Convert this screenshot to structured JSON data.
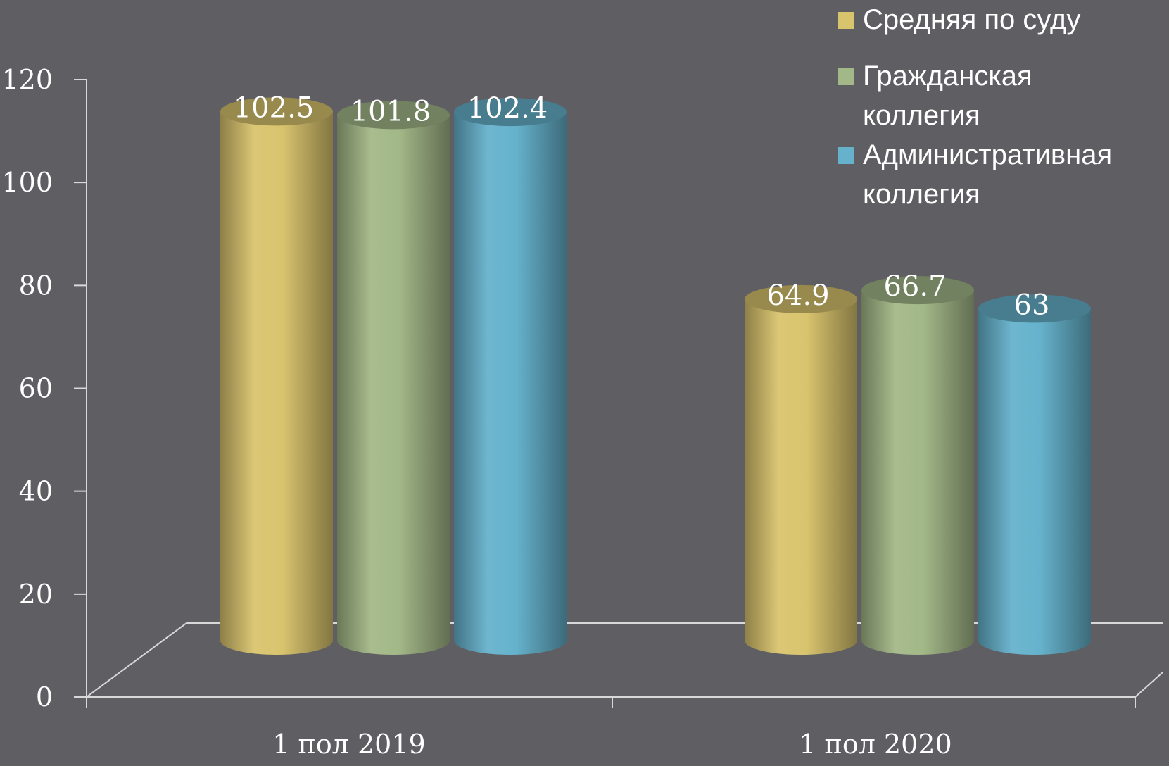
{
  "chart_data": {
    "type": "bar",
    "categories": [
      "1 пол 2019",
      "1 пол 2020"
    ],
    "series": [
      {
        "name": "Средняя по суду",
        "values": [
          102.5,
          64.9
        ],
        "color": "#d9c46e"
      },
      {
        "name": "Гражданская коллегия",
        "values": [
          101.8,
          66.7
        ],
        "color": "#a3b888"
      },
      {
        "name": "Административная коллегия",
        "values": [
          102.4,
          63
        ],
        "color": "#66b2cc"
      }
    ],
    "data_labels": [
      [
        "102.5",
        "64.9"
      ],
      [
        "101.8",
        "66.7"
      ],
      [
        "102.4",
        "63"
      ]
    ],
    "yticks": [
      "0",
      "20",
      "40",
      "60",
      "80",
      "100",
      "120"
    ],
    "ylim": [
      0,
      120
    ],
    "title": "",
    "xlabel": "",
    "ylabel": "",
    "legend_position": "top-right",
    "grid": false,
    "style": "3d-cylinder"
  },
  "legend": {
    "items": [
      {
        "label": "Средняя по суду",
        "color": "#d9c46e"
      },
      {
        "label": "Гражданская коллегия",
        "color": "#a3b888"
      },
      {
        "label": "Административная коллегия",
        "color": "#66b2cc"
      }
    ]
  }
}
